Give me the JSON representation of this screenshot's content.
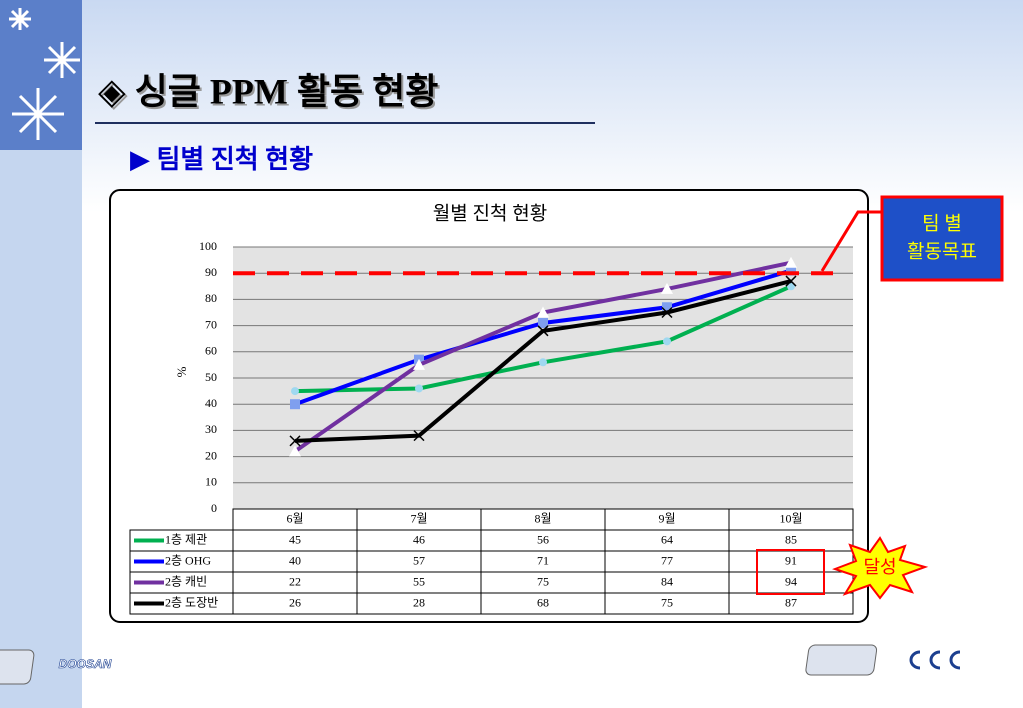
{
  "header": {
    "title": "◈ 싱글 PPM 활동 현황",
    "subtitle": "▶ 팀별 진척 현황"
  },
  "logos": {
    "left": "DOOSAN"
  },
  "chart_data": {
    "type": "line",
    "title": "월별 진척 현황",
    "ylabel": "%",
    "categories": [
      "6월",
      "7월",
      "8월",
      "9월",
      "10월"
    ],
    "series": [
      {
        "name": "1층 제관",
        "color": "#00b050",
        "marker": "circle",
        "values": [
          45,
          46,
          56,
          64,
          85
        ]
      },
      {
        "name": "2층 OHG",
        "color": "#0000ff",
        "marker": "square",
        "values": [
          40,
          57,
          71,
          77,
          91
        ]
      },
      {
        "name": "2층 캐빈",
        "color": "#7030a0",
        "marker": "triangle",
        "values": [
          22,
          55,
          75,
          84,
          94
        ]
      },
      {
        "name": "2층 도장반",
        "color": "#000000",
        "marker": "x",
        "values": [
          26,
          28,
          68,
          75,
          87
        ]
      }
    ],
    "ylim": [
      0,
      100
    ],
    "yticks": [
      0,
      10,
      20,
      30,
      40,
      50,
      60,
      70,
      80,
      90,
      100
    ],
    "grid": true,
    "target": 90,
    "target_color": "#ff0000",
    "target_label": [
      "팀 별",
      "활동목표"
    ],
    "achievement_label": "달성"
  }
}
